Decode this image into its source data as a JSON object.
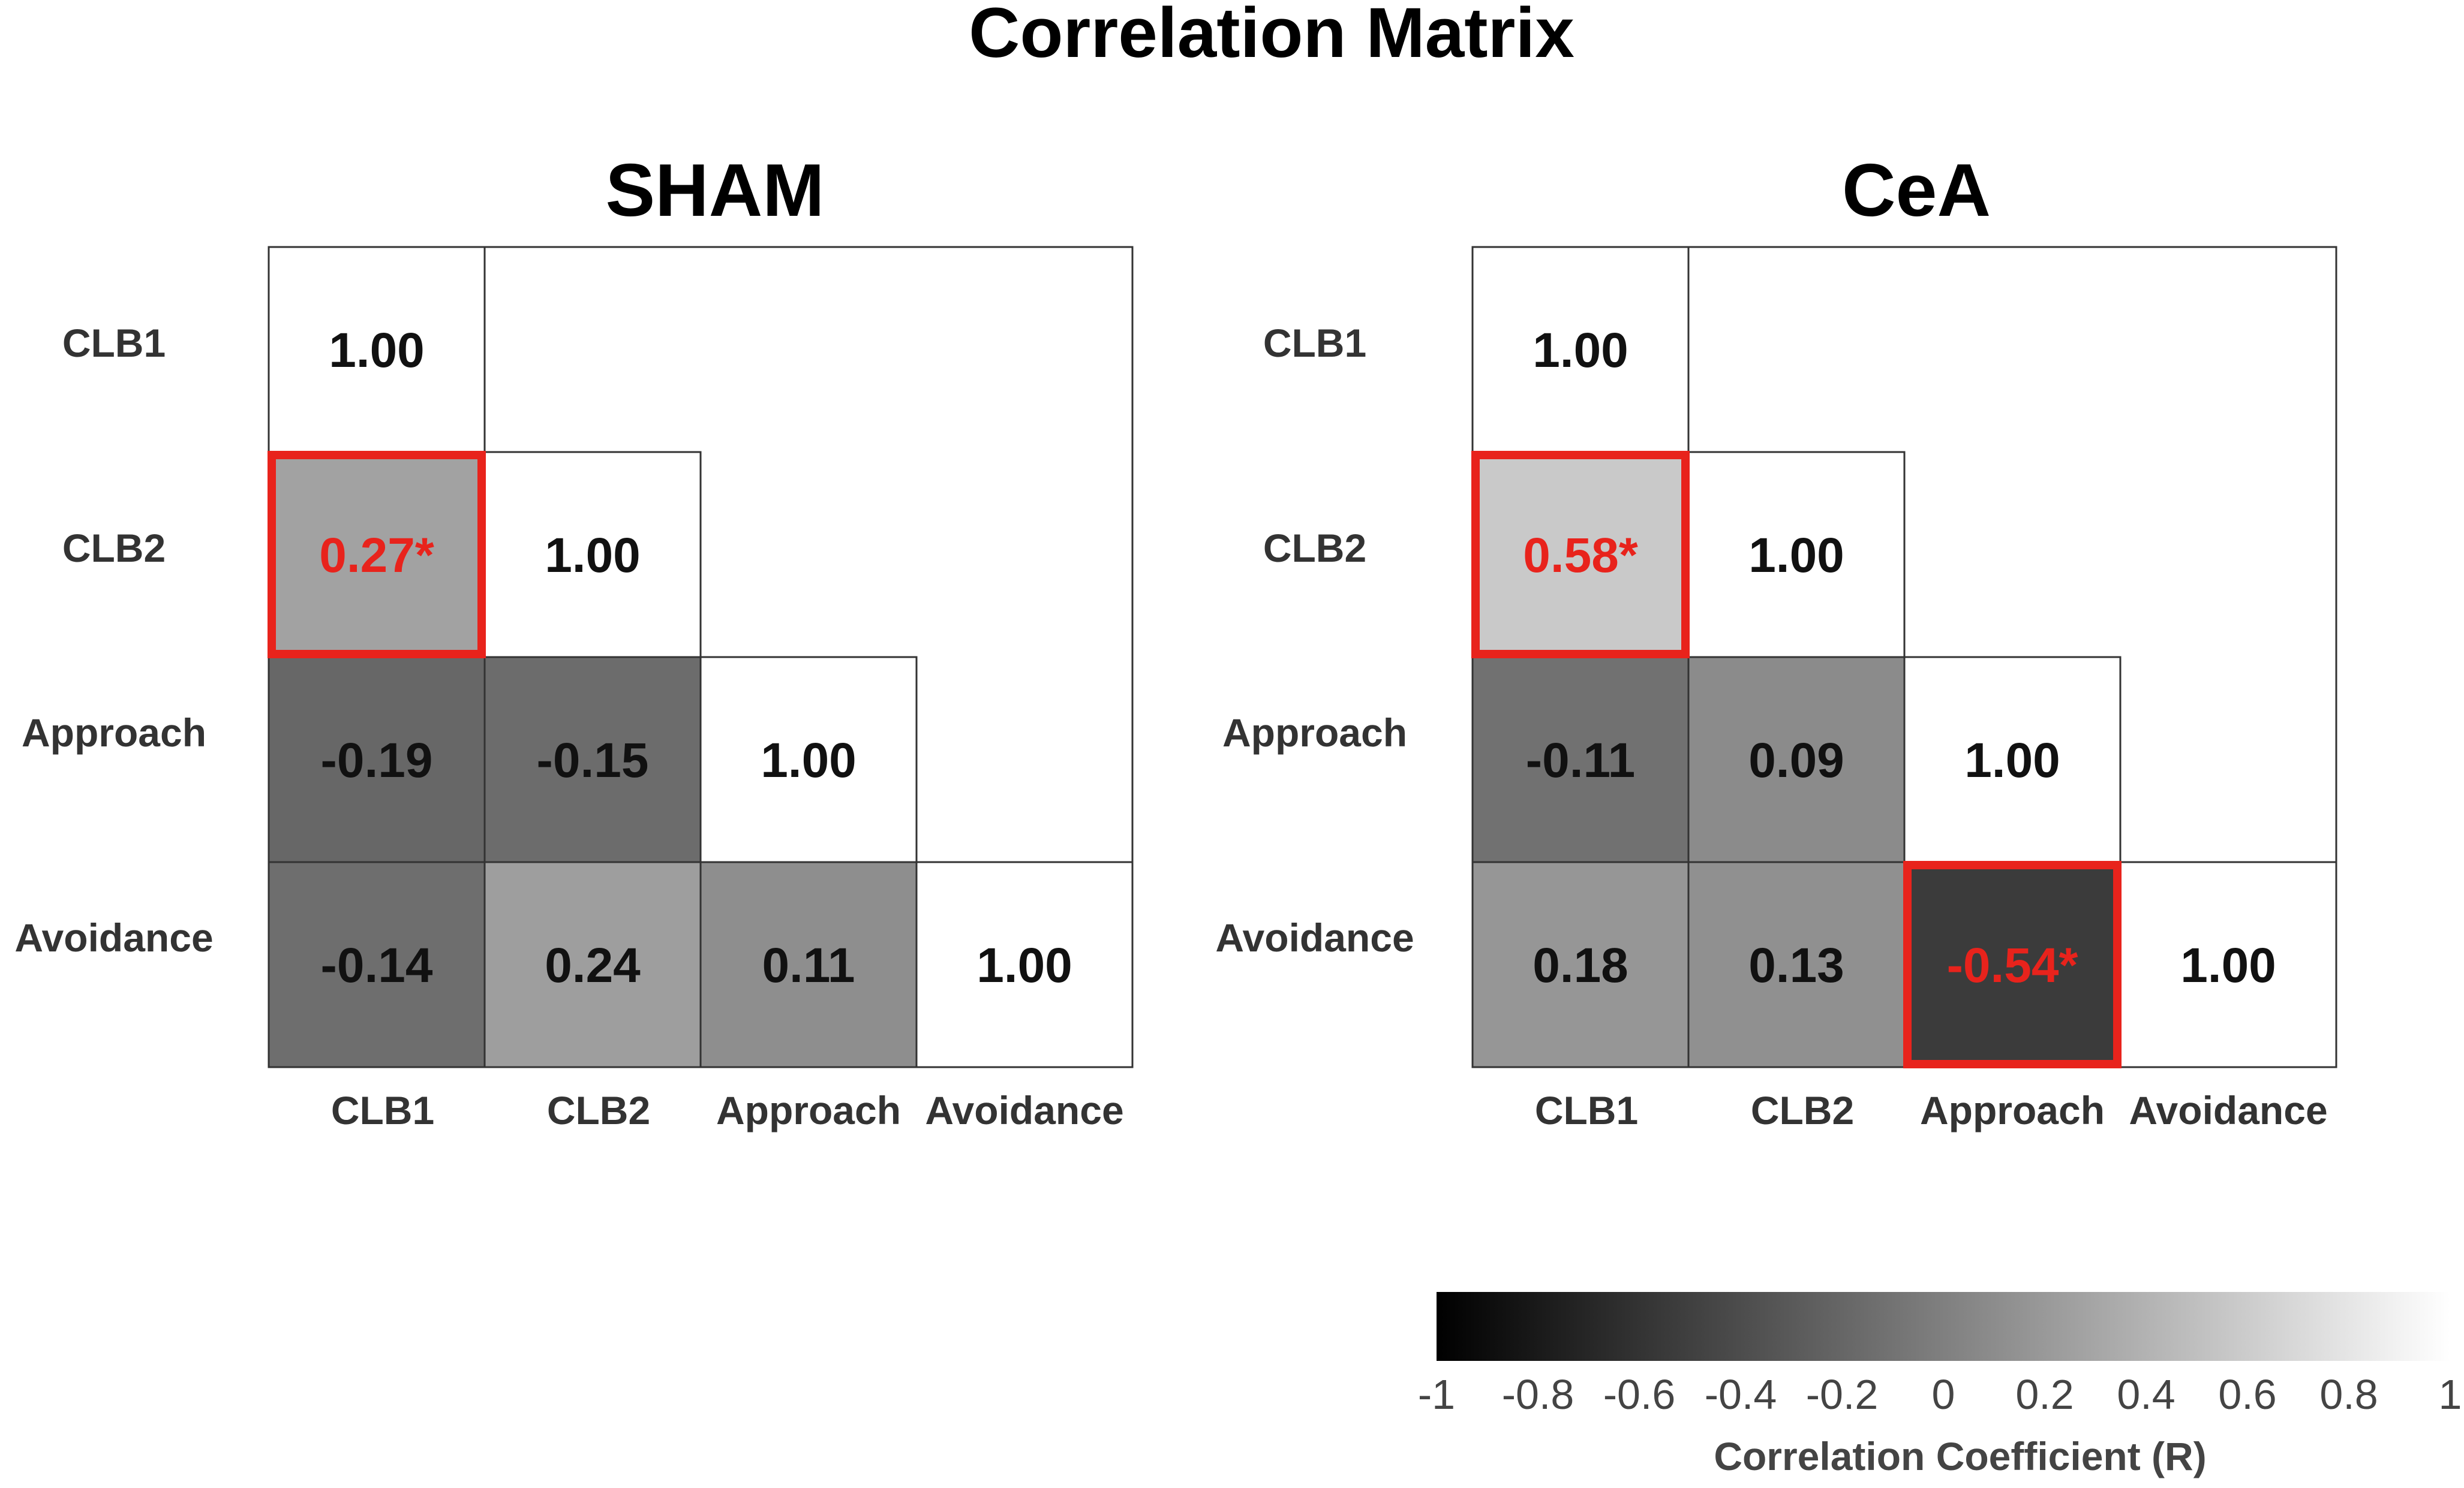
{
  "chart_data": {
    "type": "heatmap",
    "title": "Correlation Matrix",
    "variables": [
      "CLB1",
      "CLB2",
      "Approach",
      "Avoidance"
    ],
    "panels": [
      {
        "name": "SHAM",
        "cells": [
          {
            "row": 0,
            "col": 0,
            "value": 1.0,
            "label": "1.00",
            "significant": false
          },
          {
            "row": 1,
            "col": 0,
            "value": 0.27,
            "label": "0.27*",
            "significant": true
          },
          {
            "row": 1,
            "col": 1,
            "value": 1.0,
            "label": "1.00",
            "significant": false
          },
          {
            "row": 2,
            "col": 0,
            "value": -0.19,
            "label": "-0.19",
            "significant": false
          },
          {
            "row": 2,
            "col": 1,
            "value": -0.15,
            "label": "-0.15",
            "significant": false
          },
          {
            "row": 2,
            "col": 2,
            "value": 1.0,
            "label": "1.00",
            "significant": false
          },
          {
            "row": 3,
            "col": 0,
            "value": -0.14,
            "label": "-0.14",
            "significant": false
          },
          {
            "row": 3,
            "col": 1,
            "value": 0.24,
            "label": "0.24",
            "significant": false
          },
          {
            "row": 3,
            "col": 2,
            "value": 0.11,
            "label": "0.11",
            "significant": false
          },
          {
            "row": 3,
            "col": 3,
            "value": 1.0,
            "label": "1.00",
            "significant": false
          }
        ]
      },
      {
        "name": "CeA",
        "cells": [
          {
            "row": 0,
            "col": 0,
            "value": 1.0,
            "label": "1.00",
            "significant": false
          },
          {
            "row": 1,
            "col": 0,
            "value": 0.58,
            "label": "0.58*",
            "significant": true
          },
          {
            "row": 1,
            "col": 1,
            "value": 1.0,
            "label": "1.00",
            "significant": false
          },
          {
            "row": 2,
            "col": 0,
            "value": -0.11,
            "label": "-0.11",
            "significant": false
          },
          {
            "row": 2,
            "col": 1,
            "value": 0.09,
            "label": "0.09",
            "significant": false
          },
          {
            "row": 2,
            "col": 2,
            "value": 1.0,
            "label": "1.00",
            "significant": false
          },
          {
            "row": 3,
            "col": 0,
            "value": 0.18,
            "label": "0.18",
            "significant": false
          },
          {
            "row": 3,
            "col": 1,
            "value": 0.13,
            "label": "0.13",
            "significant": false
          },
          {
            "row": 3,
            "col": 2,
            "value": -0.54,
            "label": "-0.54*",
            "significant": true
          },
          {
            "row": 3,
            "col": 3,
            "value": 1.0,
            "label": "1.00",
            "significant": false
          }
        ]
      }
    ],
    "colorbar": {
      "title": "Correlation Coefficient (R)",
      "range": [
        -1,
        1
      ],
      "ticks": [
        "-1",
        "-0.8",
        "-0.6",
        "-0.4",
        "-0.2",
        "0",
        "0.2",
        "0.4",
        "0.6",
        "0.8",
        "1"
      ],
      "colormap": "grayscale: black at -1, white at 1"
    }
  },
  "colors": {
    "significant_border": "#e8231c",
    "significant_text": "#e8231c",
    "normal_text": "#111111",
    "grid_line": "#333333"
  }
}
